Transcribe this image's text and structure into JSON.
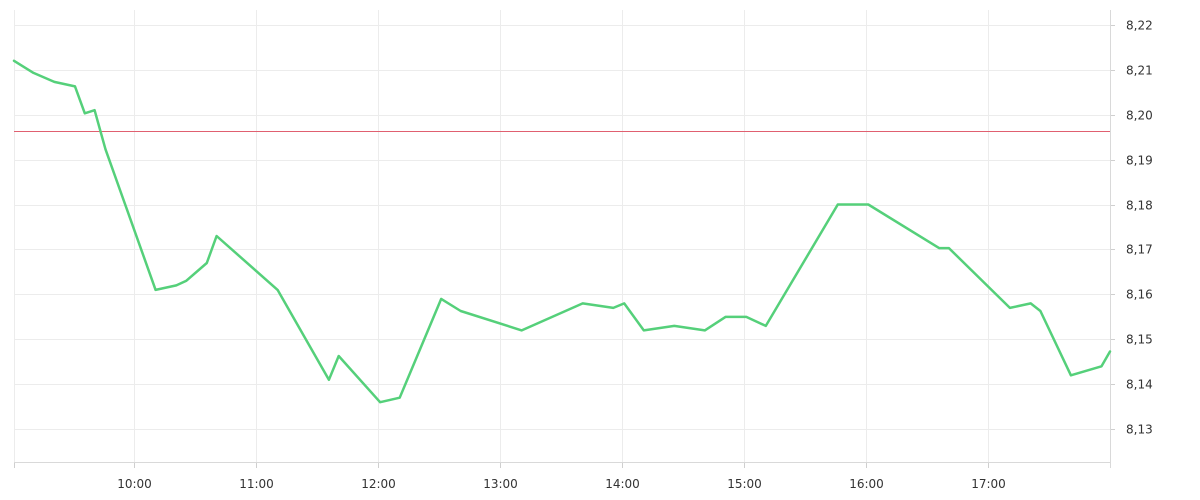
{
  "chart_data": {
    "type": "line",
    "title": "",
    "xlabel": "",
    "ylabel": "",
    "x_range": [
      9.02,
      18.0
    ],
    "ylim": [
      8.1227,
      8.2233
    ],
    "x_ticks": [
      {
        "value": 10,
        "label": "10:00"
      },
      {
        "value": 11,
        "label": "11:00"
      },
      {
        "value": 12,
        "label": "12:00"
      },
      {
        "value": 13,
        "label": "13:00"
      },
      {
        "value": 14,
        "label": "14:00"
      },
      {
        "value": 15,
        "label": "15:00"
      },
      {
        "value": 16,
        "label": "16:00"
      },
      {
        "value": 17,
        "label": "17:00"
      }
    ],
    "y_ticks": [
      {
        "value": 8.22,
        "label": "8,22"
      },
      {
        "value": 8.21,
        "label": "8,21"
      },
      {
        "value": 8.2,
        "label": "8,20"
      },
      {
        "value": 8.19,
        "label": "8,19"
      },
      {
        "value": 8.18,
        "label": "8,18"
      },
      {
        "value": 8.17,
        "label": "8,17"
      },
      {
        "value": 8.16,
        "label": "8,16"
      },
      {
        "value": 8.15,
        "label": "8,15"
      },
      {
        "value": 8.14,
        "label": "8,14"
      },
      {
        "value": 8.13,
        "label": "8,13"
      }
    ],
    "grid": true,
    "legend": "none",
    "reference_line": {
      "value": 8.1963,
      "color": "#e06070"
    },
    "series": [
      {
        "color": "#55d07a",
        "x": [
          9.02,
          9.18,
          9.35,
          9.52,
          9.6,
          9.68,
          9.77,
          10.18,
          10.35,
          10.43,
          10.6,
          10.68,
          11.18,
          11.6,
          11.68,
          12.02,
          12.18,
          12.52,
          12.68,
          13.18,
          13.68,
          13.93,
          14.02,
          14.18,
          14.43,
          14.68,
          14.85,
          15.02,
          15.18,
          15.77,
          16.02,
          16.6,
          16.68,
          17.18,
          17.35,
          17.43,
          17.68,
          17.93,
          18.0
        ],
        "y": [
          8.212,
          8.2093,
          8.2073,
          8.2063,
          8.2003,
          8.201,
          8.1923,
          8.161,
          8.162,
          8.163,
          8.167,
          8.173,
          8.161,
          8.141,
          8.1463,
          8.136,
          8.137,
          8.159,
          8.1563,
          8.152,
          8.158,
          8.157,
          8.158,
          8.152,
          8.153,
          8.152,
          8.155,
          8.155,
          8.153,
          8.18,
          8.18,
          8.1703,
          8.1703,
          8.157,
          8.158,
          8.1563,
          8.142,
          8.144,
          8.1473
        ]
      }
    ]
  }
}
